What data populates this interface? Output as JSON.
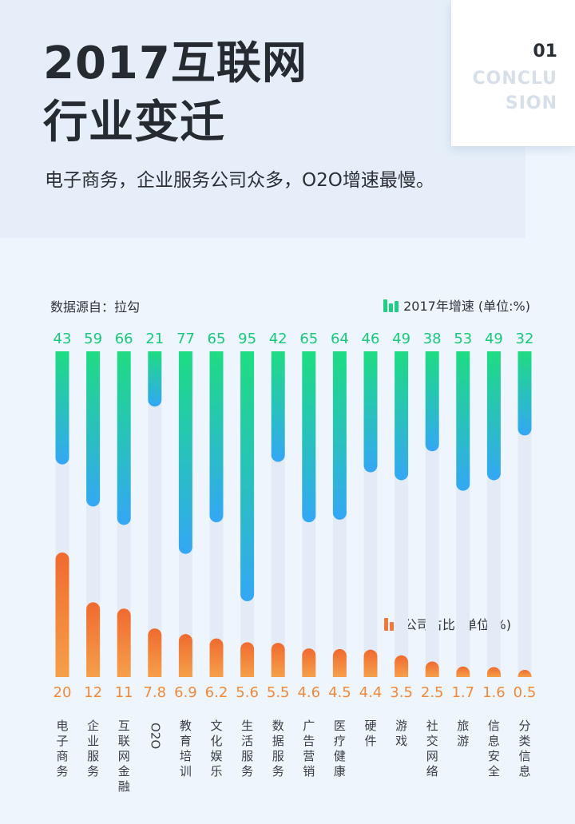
{
  "title": {
    "line1": "2017互联网",
    "line2": "行业变迁"
  },
  "subtitle": "电子商务，企业服务公司众多，O2O增速最慢。",
  "card": {
    "number": "01",
    "word_line1": "CONCLU",
    "word_line2": "SION"
  },
  "source_text": "数据源自：拉勾",
  "colors": {
    "growth_top": "#1edc82",
    "growth_bottom": "#34a7f5",
    "share_top": "#f06a2f",
    "share_bottom": "#f5a04a",
    "growth_label": "#18c97a",
    "share_label": "#f08a3a",
    "track": "#e3ecf6"
  },
  "chart_data": {
    "type": "bar",
    "categories": [
      "电子商务",
      "企业服务",
      "互联网金融",
      "O2O",
      "教育培训",
      "文化娱乐",
      "生活服务",
      "数据服务",
      "广告营销",
      "医疗健康",
      "硬件",
      "游戏",
      "社交网络",
      "旅游",
      "信息安全",
      "分类信息"
    ],
    "series": [
      {
        "name": "2017年增速 (单位:%)",
        "values": [
          43,
          59,
          66,
          21,
          77,
          65,
          95,
          42,
          65,
          64,
          46,
          49,
          38,
          53,
          49,
          32
        ],
        "labels": [
          "43",
          "59",
          "66",
          "21",
          "77",
          "65",
          "95",
          "42",
          "65",
          "64",
          "46",
          "49",
          "38",
          "53",
          "49",
          "32"
        ]
      },
      {
        "name": "公司占比 (单位:%)",
        "values": [
          20,
          12,
          11,
          7.8,
          6.9,
          6.2,
          5.6,
          5.5,
          4.6,
          4.5,
          4.4,
          3.5,
          2.5,
          1.7,
          1.6,
          0.5
        ],
        "labels": [
          "20",
          "12",
          "11",
          "7.8",
          "6.9",
          "6.2",
          "5.6",
          "5.5",
          "4.6",
          "4.5",
          "4.4",
          "3.5",
          "2.5",
          "1.7",
          "1.6",
          "0.5"
        ]
      }
    ],
    "growth_scale_max": 95,
    "share_scale_max": 20
  }
}
